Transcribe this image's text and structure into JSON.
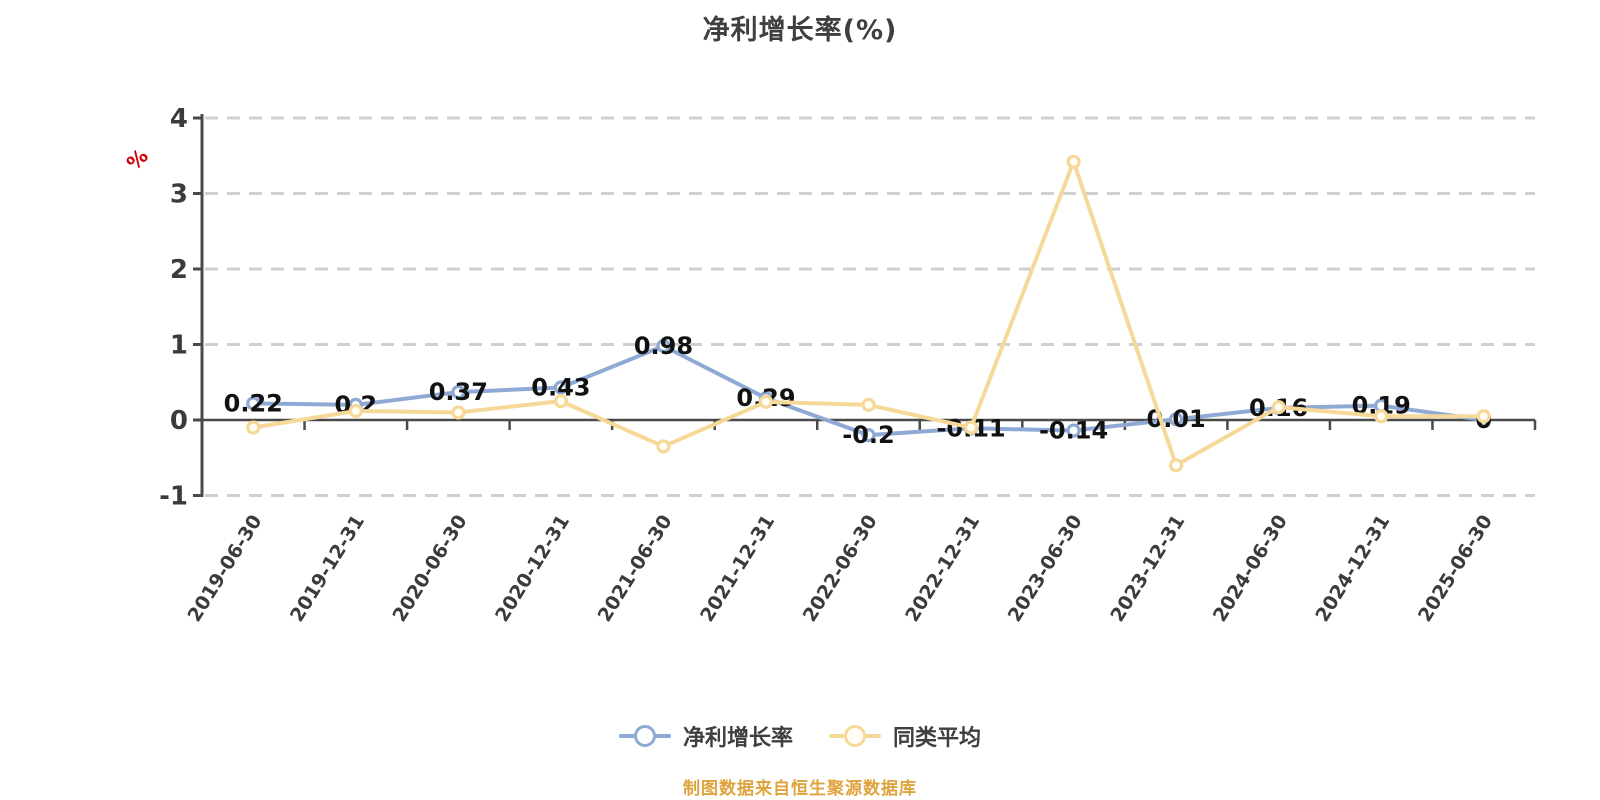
{
  "title": "净利增长率(%)",
  "y_unit": "%",
  "footer": "制图数据来自恒生聚源数据库",
  "legend": [
    {
      "label": "净利增长率",
      "color": "#8FA9D5",
      "marker_fill": "#FFFFFF"
    },
    {
      "label": "同类平均",
      "color": "#F6D998",
      "marker_fill": "#FFFDF4"
    }
  ],
  "colors": {
    "title": "#3F3F3F",
    "axis": "#4A4A4A",
    "grid": "#CFCFCF",
    "tick_label": "#3B3B3B",
    "value_label": "#111111",
    "unit": "#CC0000",
    "legend_text": "#3F3F3F",
    "footer": "#DFA33C"
  },
  "chart_data": {
    "type": "line",
    "title": "净利增长率(%)",
    "xlabel": "",
    "ylabel": "%",
    "ylim": [
      -1,
      4
    ],
    "yticks": [
      4,
      3,
      2,
      1,
      0,
      -1
    ],
    "grid": "dashed horizontal",
    "legend_position": "bottom",
    "categories": [
      "2019-06-30",
      "2019-12-31",
      "2020-06-30",
      "2020-12-31",
      "2021-06-30",
      "2021-12-31",
      "2022-06-30",
      "2022-12-31",
      "2023-06-30",
      "2023-12-31",
      "2024-06-30",
      "2024-12-31",
      "2025-06-30"
    ],
    "series": [
      {
        "name": "净利增长率",
        "color": "#8FA9D5",
        "marker_fill": "#FFFFFF",
        "values": [
          0.22,
          0.2,
          0.37,
          0.43,
          0.98,
          0.29,
          -0.2,
          -0.11,
          -0.14,
          0.01,
          0.16,
          0.19,
          0
        ],
        "labels": [
          "0.22",
          "0.2",
          "0.37",
          "0.43",
          "0.98",
          "0.29",
          "-0.2",
          "-0.11",
          "-0.14",
          "0.01",
          "0.16",
          "0.19",
          "0"
        ]
      },
      {
        "name": "同类平均",
        "color": "#F6D998",
        "marker_fill": "#FFFDF4",
        "values": [
          -0.1,
          0.12,
          0.1,
          0.25,
          -0.35,
          0.24,
          0.2,
          -0.1,
          3.42,
          -0.6,
          0.17,
          0.05,
          0.05
        ],
        "labels": null
      }
    ]
  }
}
